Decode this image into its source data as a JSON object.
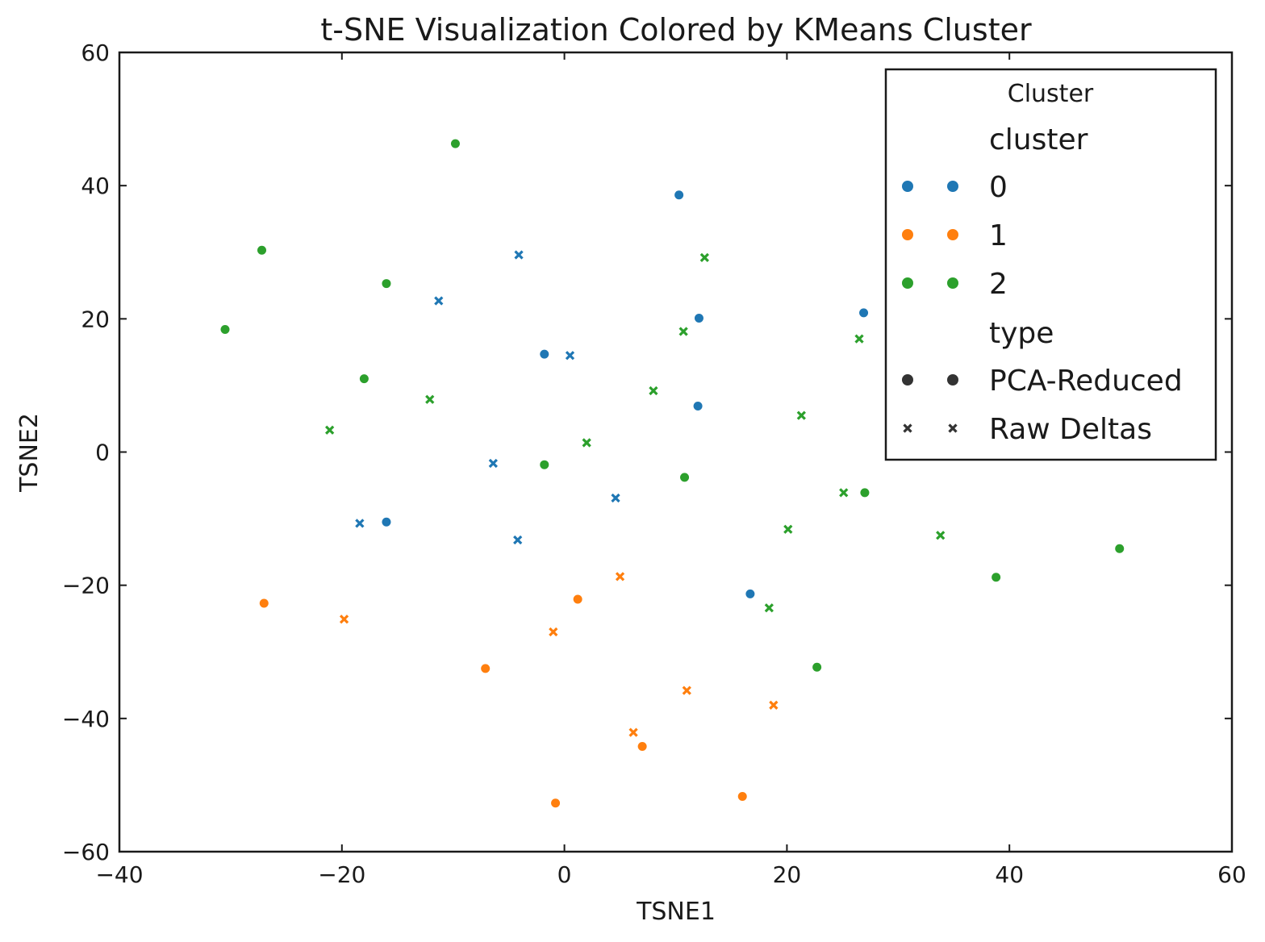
{
  "chart_data": {
    "type": "scatter",
    "title": "t-SNE Visualization Colored by KMeans Cluster",
    "xlabel": "TSNE1",
    "ylabel": "TSNE2",
    "xlim": [
      -40,
      60
    ],
    "ylim": [
      -60,
      60
    ],
    "xticks": [
      -40,
      -20,
      0,
      20,
      40,
      60
    ],
    "yticks": [
      -60,
      -40,
      -20,
      0,
      20,
      40,
      60
    ],
    "xtick_labels": [
      "−40",
      "−20",
      "0",
      "20",
      "40",
      "60"
    ],
    "ytick_labels": [
      "−60",
      "−40",
      "−20",
      "0",
      "20",
      "40",
      "60"
    ],
    "grid": false,
    "legend": {
      "title": "Cluster",
      "placement": "top-right",
      "hue_header": "cluster",
      "style_header": "type",
      "hue_entries": [
        {
          "label": "0",
          "color": "#1f77b4"
        },
        {
          "label": "1",
          "color": "#ff7f0e"
        },
        {
          "label": "2",
          "color": "#2ca02c"
        }
      ],
      "style_entries": [
        {
          "label": "PCA-Reduced",
          "marker": "circle"
        },
        {
          "label": "Raw Deltas",
          "marker": "x"
        }
      ]
    },
    "colors": {
      "0": "#1f77b4",
      "1": "#ff7f0e",
      "2": "#2ca02c"
    },
    "series": [
      {
        "cluster": "0",
        "type": "PCA-Reduced",
        "points": [
          [
            10.3,
            38.6
          ],
          [
            12.1,
            20.1
          ],
          [
            -1.8,
            14.7
          ],
          [
            12.0,
            6.9
          ],
          [
            -16.0,
            -10.5
          ],
          [
            16.7,
            -21.3
          ],
          [
            26.9,
            20.9
          ]
        ]
      },
      {
        "cluster": "0",
        "type": "Raw Deltas",
        "points": [
          [
            -4.1,
            29.6
          ],
          [
            -11.3,
            22.7
          ],
          [
            0.5,
            14.5
          ],
          [
            -6.4,
            -1.7
          ],
          [
            -18.4,
            -10.7
          ],
          [
            4.6,
            -6.9
          ],
          [
            -4.2,
            -13.2
          ]
        ]
      },
      {
        "cluster": "1",
        "type": "PCA-Reduced",
        "points": [
          [
            -27.0,
            -22.7
          ],
          [
            1.2,
            -22.1
          ],
          [
            -7.1,
            -32.5
          ],
          [
            7.0,
            -44.2
          ],
          [
            -0.8,
            -52.7
          ],
          [
            16.0,
            -51.7
          ]
        ]
      },
      {
        "cluster": "1",
        "type": "Raw Deltas",
        "points": [
          [
            -19.8,
            -25.1
          ],
          [
            5.0,
            -18.7
          ],
          [
            -1.0,
            -27.0
          ],
          [
            11.0,
            -35.8
          ],
          [
            18.8,
            -38.0
          ],
          [
            6.2,
            -42.1
          ]
        ]
      },
      {
        "cluster": "2",
        "type": "PCA-Reduced",
        "points": [
          [
            -9.8,
            46.3
          ],
          [
            -27.2,
            30.3
          ],
          [
            -16.0,
            25.3
          ],
          [
            -30.5,
            18.4
          ],
          [
            -18.0,
            11.0
          ],
          [
            -1.8,
            -1.9
          ],
          [
            10.8,
            -3.8
          ],
          [
            27.0,
            -6.1
          ],
          [
            38.8,
            -18.8
          ],
          [
            49.9,
            -14.5
          ],
          [
            22.7,
            -32.3
          ]
        ]
      },
      {
        "cluster": "2",
        "type": "Raw Deltas",
        "points": [
          [
            12.6,
            29.2
          ],
          [
            10.7,
            18.1
          ],
          [
            26.5,
            17.0
          ],
          [
            8.0,
            9.2
          ],
          [
            -12.1,
            7.9
          ],
          [
            -21.1,
            3.3
          ],
          [
            2.0,
            1.4
          ],
          [
            21.3,
            5.5
          ],
          [
            25.1,
            -6.1
          ],
          [
            20.1,
            -11.6
          ],
          [
            33.8,
            -12.5
          ],
          [
            18.4,
            -23.4
          ]
        ]
      }
    ]
  }
}
